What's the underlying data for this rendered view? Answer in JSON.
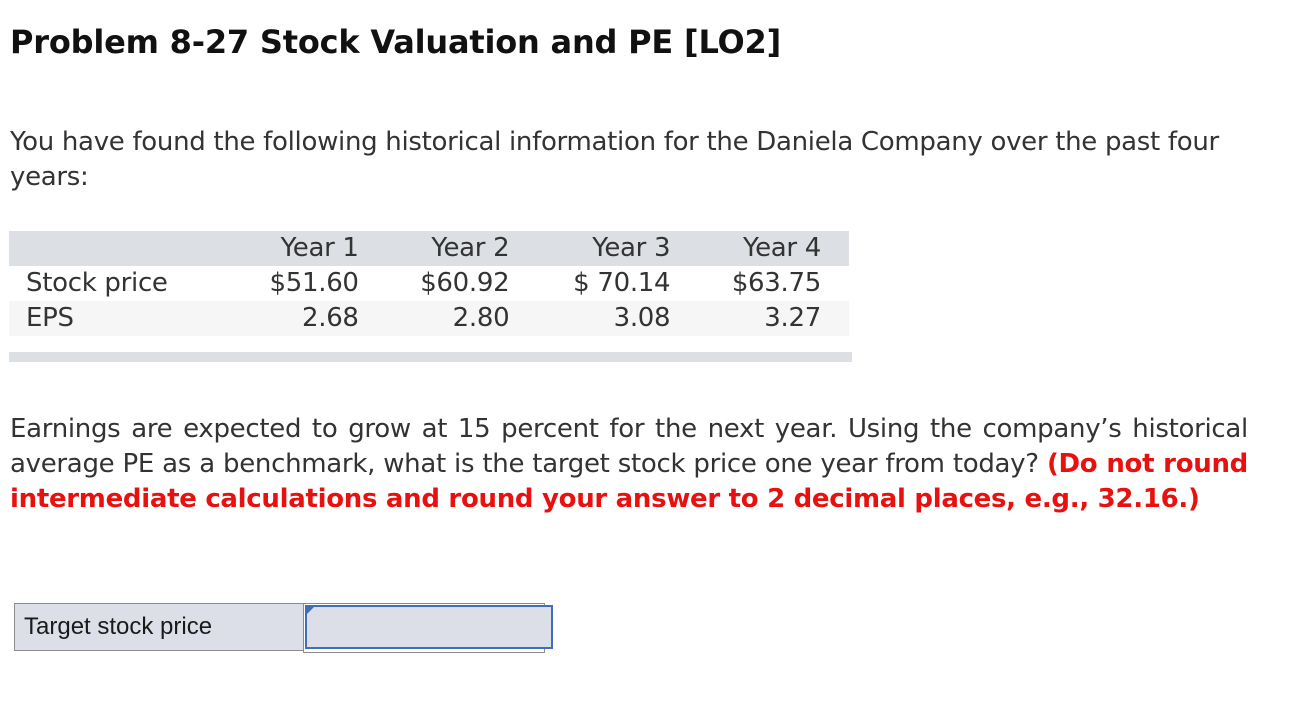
{
  "problem": {
    "title": "Problem 8-27 Stock Valuation and PE [LO2]",
    "intro": "You have found the following historical information for the Daniela Company over the past four years:"
  },
  "table": {
    "headers": [
      "",
      "Year 1",
      "Year 2",
      "Year 3",
      "Year 4"
    ],
    "rows": [
      {
        "label": "Stock price",
        "values": [
          "$51.60",
          "$60.92",
          "$ 70.14",
          "$63.75"
        ]
      },
      {
        "label": "EPS",
        "values": [
          "2.68",
          "2.80",
          "3.08",
          "3.27"
        ]
      }
    ]
  },
  "question": {
    "text": "Earnings are expected to grow at 15 percent for the next year. Using the company’s historical average PE as a benchmark, what is the target stock price one year from today?",
    "instruction": "(Do not round intermediate calculations and round your answer to 2 decimal places, e.g., 32.16.)"
  },
  "answer": {
    "label": "Target stock price",
    "value": ""
  },
  "colors": {
    "instruction": "#e8110f",
    "table_header_bg": "#dcdfe3",
    "input_border": "#3f6fb6",
    "input_bg": "#dcdfe8"
  }
}
